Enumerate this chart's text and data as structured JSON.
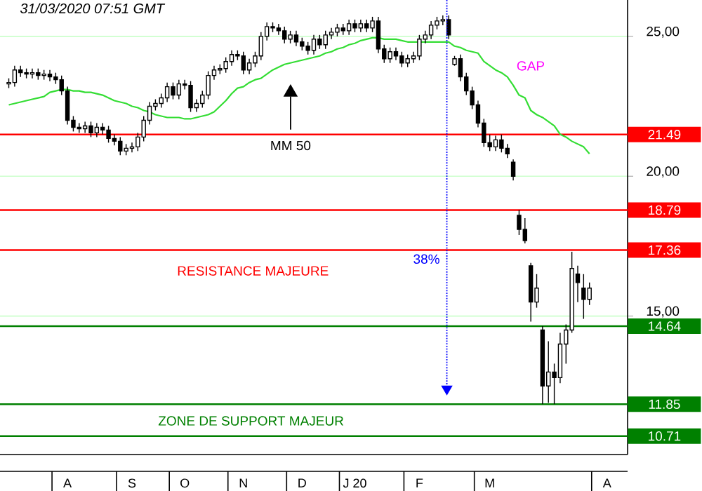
{
  "chart_data": {
    "type": "candlestick",
    "title": "31/03/2020  07:51 GMT",
    "categories": [
      null,
      null,
      null,
      null,
      null,
      null,
      null,
      null,
      null,
      null,
      "A",
      null,
      null,
      null,
      null,
      null,
      null,
      null,
      null,
      null,
      null,
      "S",
      null,
      null,
      null,
      null,
      null,
      null,
      null,
      null,
      "O",
      null,
      null,
      null,
      null,
      null,
      null,
      null,
      null,
      null,
      "N",
      null,
      null,
      null,
      null,
      null,
      null,
      null,
      null,
      null,
      "D",
      null,
      null,
      null,
      null,
      null,
      null,
      null,
      null,
      "J 20",
      null,
      null,
      null,
      null,
      null,
      null,
      null,
      null,
      null,
      null,
      "F",
      null,
      null,
      null,
      null,
      null,
      null,
      null,
      null,
      null,
      null,
      null,
      "M",
      null,
      null,
      null,
      null,
      null,
      null,
      null,
      null,
      null,
      null,
      null,
      null,
      null,
      null,
      null,
      null,
      null,
      null,
      null,
      "A",
      null,
      null,
      null
    ],
    "ylim": [
      10.05,
      26.3
    ],
    "yticks": [
      {
        "value": 25,
        "label": "25,00"
      },
      {
        "value": 20,
        "label": "20,00"
      },
      {
        "value": 15,
        "label": "15,00"
      }
    ],
    "grid": "y",
    "legend": false,
    "series": [
      {
        "type": "candlestick",
        "color": "#000000",
        "ohlc": [
          [
            23.3,
            23.5,
            23.15,
            23.35
          ],
          [
            23.35,
            23.95,
            23.2,
            23.8
          ],
          [
            23.8,
            23.95,
            23.55,
            23.7
          ],
          [
            23.7,
            23.85,
            23.5,
            23.65
          ],
          [
            23.65,
            23.85,
            23.5,
            23.7
          ],
          [
            23.7,
            23.85,
            23.45,
            23.6
          ],
          [
            23.6,
            23.8,
            23.45,
            23.65
          ],
          [
            23.65,
            23.8,
            23.4,
            23.55
          ],
          [
            23.55,
            23.7,
            23.3,
            23.45
          ],
          [
            23.45,
            23.6,
            22.9,
            23.05
          ],
          [
            23.05,
            23.2,
            21.85,
            22.0
          ],
          [
            22.0,
            22.15,
            21.6,
            21.75
          ],
          [
            21.75,
            21.9,
            21.55,
            21.7
          ],
          [
            21.7,
            21.95,
            21.55,
            21.8
          ],
          [
            21.8,
            21.95,
            21.4,
            21.55
          ],
          [
            21.55,
            21.9,
            21.4,
            21.75
          ],
          [
            21.75,
            21.9,
            21.5,
            21.65
          ],
          [
            21.65,
            21.8,
            21.2,
            21.35
          ],
          [
            21.35,
            21.5,
            21.1,
            21.25
          ],
          [
            21.25,
            21.4,
            20.75,
            20.9
          ],
          [
            20.9,
            21.15,
            20.75,
            21.0
          ],
          [
            21.0,
            21.2,
            20.85,
            21.05
          ],
          [
            21.05,
            21.55,
            20.9,
            21.4
          ],
          [
            21.4,
            22.15,
            21.25,
            22.0
          ],
          [
            22.0,
            22.65,
            21.85,
            22.5
          ],
          [
            22.5,
            22.75,
            22.35,
            22.6
          ],
          [
            22.6,
            22.95,
            22.45,
            22.8
          ],
          [
            22.8,
            23.35,
            22.65,
            23.2
          ],
          [
            23.2,
            23.35,
            22.75,
            22.9
          ],
          [
            22.9,
            23.45,
            22.75,
            23.3
          ],
          [
            23.3,
            23.45,
            23.1,
            23.25
          ],
          [
            23.25,
            23.4,
            22.3,
            22.45
          ],
          [
            22.45,
            22.75,
            22.3,
            22.6
          ],
          [
            22.6,
            23.05,
            22.45,
            22.9
          ],
          [
            22.9,
            23.75,
            22.75,
            23.6
          ],
          [
            23.6,
            23.95,
            23.45,
            23.8
          ],
          [
            23.8,
            24.0,
            23.65,
            23.85
          ],
          [
            23.85,
            24.25,
            23.7,
            24.1
          ],
          [
            24.1,
            24.5,
            23.95,
            24.35
          ],
          [
            24.35,
            24.5,
            24.15,
            24.3
          ],
          [
            24.3,
            24.45,
            23.65,
            23.8
          ],
          [
            23.8,
            24.2,
            23.65,
            24.05
          ],
          [
            24.05,
            24.45,
            23.9,
            24.3
          ],
          [
            24.3,
            25.15,
            24.15,
            25.0
          ],
          [
            25.0,
            25.5,
            24.85,
            25.35
          ],
          [
            25.35,
            25.5,
            25.15,
            25.3
          ],
          [
            25.3,
            25.45,
            25.05,
            25.2
          ],
          [
            25.2,
            25.35,
            24.75,
            24.9
          ],
          [
            24.9,
            25.2,
            24.75,
            25.05
          ],
          [
            25.05,
            25.2,
            24.65,
            24.8
          ],
          [
            24.8,
            24.95,
            24.5,
            24.65
          ],
          [
            24.65,
            24.8,
            24.35,
            24.5
          ],
          [
            24.5,
            25.05,
            24.35,
            24.9
          ],
          [
            24.9,
            25.05,
            24.55,
            24.7
          ],
          [
            24.7,
            25.2,
            24.55,
            25.05
          ],
          [
            25.05,
            25.3,
            24.9,
            25.15
          ],
          [
            25.15,
            25.45,
            25.0,
            25.3
          ],
          [
            25.3,
            25.45,
            25.05,
            25.2
          ],
          [
            25.2,
            25.6,
            25.05,
            25.45
          ],
          [
            25.45,
            25.6,
            25.15,
            25.3
          ],
          [
            25.3,
            25.6,
            25.15,
            25.45
          ],
          [
            25.45,
            25.6,
            25.15,
            25.3
          ],
          [
            25.3,
            25.7,
            25.15,
            25.55
          ],
          [
            25.55,
            25.7,
            24.4,
            24.55
          ],
          [
            24.55,
            24.7,
            24.05,
            24.2
          ],
          [
            24.2,
            24.6,
            24.05,
            24.45
          ],
          [
            24.45,
            24.6,
            24.15,
            24.3
          ],
          [
            24.3,
            24.45,
            23.9,
            24.05
          ],
          [
            24.05,
            24.35,
            23.9,
            24.2
          ],
          [
            24.2,
            24.45,
            24.05,
            24.3
          ],
          [
            24.3,
            25.05,
            24.15,
            24.9
          ],
          [
            24.9,
            25.2,
            24.75,
            25.05
          ],
          [
            25.05,
            25.55,
            24.9,
            25.4
          ],
          [
            25.4,
            25.7,
            25.25,
            25.55
          ],
          [
            25.55,
            25.75,
            25.4,
            25.6
          ],
          [
            25.6,
            25.75,
            24.9,
            25.05
          ],
          [
            24.0,
            24.3,
            23.95,
            24.2
          ],
          [
            24.2,
            24.35,
            23.4,
            23.55
          ],
          [
            23.55,
            23.7,
            22.9,
            23.05
          ],
          [
            23.05,
            23.2,
            22.4,
            22.55
          ],
          [
            22.55,
            22.7,
            21.75,
            21.9
          ],
          [
            21.9,
            22.05,
            21.05,
            21.2
          ],
          [
            21.2,
            21.49,
            20.9,
            21.05
          ],
          [
            21.05,
            21.45,
            20.9,
            21.3
          ],
          [
            21.3,
            21.49,
            20.85,
            21.0
          ],
          [
            21.0,
            21.15,
            20.65,
            20.8
          ],
          [
            20.5,
            20.6,
            19.85,
            20.0
          ],
          [
            18.6,
            18.79,
            17.9,
            18.1
          ],
          [
            18.1,
            18.5,
            17.6,
            17.7
          ],
          [
            16.8,
            16.9,
            14.8,
            15.5
          ],
          [
            15.5,
            16.5,
            15.3,
            16.0
          ],
          [
            14.5,
            14.64,
            11.85,
            12.5
          ],
          [
            12.5,
            14.1,
            11.9,
            13.0
          ],
          [
            13.0,
            13.3,
            11.85,
            12.8
          ],
          [
            12.8,
            14.4,
            12.6,
            14.0
          ],
          [
            14.0,
            14.7,
            13.3,
            14.5
          ],
          [
            14.5,
            17.3,
            14.4,
            16.7
          ],
          [
            16.5,
            16.8,
            15.5,
            16.2
          ],
          [
            16.0,
            16.5,
            14.9,
            15.6
          ],
          [
            15.6,
            16.2,
            15.4,
            16.0
          ],
          null,
          null,
          null,
          null,
          null,
          null
        ]
      },
      {
        "type": "line",
        "color": "#33dd33",
        "values": [
          22.55,
          22.6,
          22.65,
          22.7,
          22.75,
          22.8,
          22.85,
          23.0,
          23.05,
          23.1,
          23.1,
          23.05,
          23.05,
          23.0,
          23.0,
          22.95,
          22.9,
          22.8,
          22.7,
          22.65,
          22.6,
          22.5,
          22.45,
          22.35,
          22.3,
          22.2,
          22.15,
          22.1,
          22.1,
          22.1,
          22.05,
          22.05,
          22.1,
          22.15,
          22.2,
          22.3,
          22.5,
          22.7,
          22.95,
          23.15,
          23.2,
          23.35,
          23.45,
          23.5,
          23.65,
          23.8,
          23.9,
          24.0,
          24.05,
          24.1,
          24.15,
          24.2,
          24.25,
          24.3,
          24.4,
          24.45,
          24.55,
          24.6,
          24.7,
          24.75,
          24.85,
          24.9,
          24.95,
          24.95,
          24.9,
          24.9,
          24.9,
          24.85,
          24.8,
          24.8,
          24.8,
          24.8,
          24.8,
          24.8,
          24.8,
          24.8,
          24.65,
          24.6,
          24.5,
          24.45,
          24.4,
          24.1,
          23.95,
          23.8,
          23.7,
          23.55,
          23.25,
          22.9,
          22.8,
          22.35,
          22.2,
          22.1,
          21.95,
          21.8,
          21.5,
          21.4,
          21.25,
          21.15,
          21.05,
          20.8,
          null,
          null,
          null,
          null,
          null,
          null
        ]
      }
    ],
    "ref_lines": [
      {
        "axis": "y",
        "value": 21.49,
        "label": "21.49",
        "color": "#ff0000"
      },
      {
        "axis": "y",
        "value": 18.79,
        "label": "18.79",
        "color": "#ff0000"
      },
      {
        "axis": "y",
        "value": 17.36,
        "label": "17.36",
        "color": "#ff0000"
      },
      {
        "axis": "y",
        "value": 14.64,
        "label": "14.64",
        "color": "#008000"
      },
      {
        "axis": "y",
        "value": 11.85,
        "label": "11.85",
        "color": "#008000"
      },
      {
        "axis": "y",
        "value": 10.71,
        "label": "10.71",
        "color": "#008000"
      }
    ],
    "annotations": [
      "GAP",
      "RESISTANCE MAJEURE",
      "ZONE DE SUPPORT MAJEUR",
      "MM 50",
      "38%"
    ]
  }
}
